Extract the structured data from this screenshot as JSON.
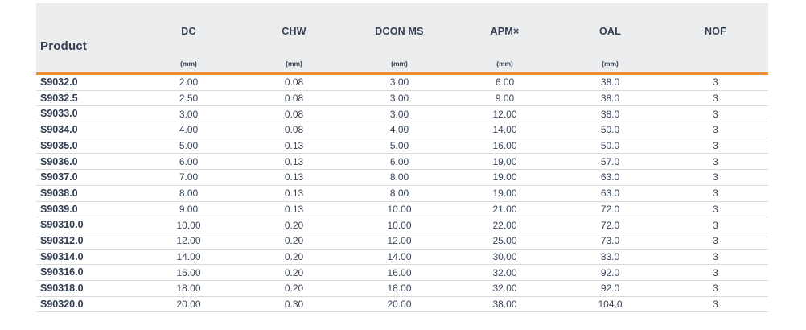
{
  "colors": {
    "accent_orange": "#EE8A33",
    "header_background": "#ECEDEF",
    "text_dark": "#333F52",
    "row_divider": "#D9DADC"
  },
  "table": {
    "columns": [
      {
        "label": "Product",
        "unit": ""
      },
      {
        "label": "DC",
        "unit": "(mm)"
      },
      {
        "label": "CHW",
        "unit": "(mm)"
      },
      {
        "label": "DCON MS",
        "unit": "(mm)"
      },
      {
        "label": "APM×",
        "unit": "(mm)"
      },
      {
        "label": "OAL",
        "unit": "(mm)"
      },
      {
        "label": "NOF",
        "unit": ""
      }
    ],
    "rows": [
      [
        "S9032.0",
        "2.00",
        "0.08",
        "3.00",
        "6.00",
        "38.0",
        "3"
      ],
      [
        "S9032.5",
        "2.50",
        "0.08",
        "3.00",
        "9.00",
        "38.0",
        "3"
      ],
      [
        "S9033.0",
        "3.00",
        "0.08",
        "3.00",
        "12.00",
        "38.0",
        "3"
      ],
      [
        "S9034.0",
        "4.00",
        "0.08",
        "4.00",
        "14.00",
        "50.0",
        "3"
      ],
      [
        "S9035.0",
        "5.00",
        "0.13",
        "5.00",
        "16.00",
        "50.0",
        "3"
      ],
      [
        "S9036.0",
        "6.00",
        "0.13",
        "6.00",
        "19.00",
        "57.0",
        "3"
      ],
      [
        "S9037.0",
        "7.00",
        "0.13",
        "8.00",
        "19.00",
        "63.0",
        "3"
      ],
      [
        "S9038.0",
        "8.00",
        "0.13",
        "8.00",
        "19.00",
        "63.0",
        "3"
      ],
      [
        "S9039.0",
        "9.00",
        "0.13",
        "10.00",
        "21.00",
        "72.0",
        "3"
      ],
      [
        "S90310.0",
        "10.00",
        "0.20",
        "10.00",
        "22.00",
        "72.0",
        "3"
      ],
      [
        "S90312.0",
        "12.00",
        "0.20",
        "12.00",
        "25.00",
        "73.0",
        "3"
      ],
      [
        "S90314.0",
        "14.00",
        "0.20",
        "14.00",
        "30.00",
        "83.0",
        "3"
      ],
      [
        "S90316.0",
        "16.00",
        "0.20",
        "16.00",
        "32.00",
        "92.0",
        "3"
      ],
      [
        "S90318.0",
        "18.00",
        "0.20",
        "18.00",
        "32.00",
        "92.0",
        "3"
      ],
      [
        "S90320.0",
        "20.00",
        "0.30",
        "20.00",
        "38.00",
        "104.0",
        "3"
      ]
    ]
  }
}
